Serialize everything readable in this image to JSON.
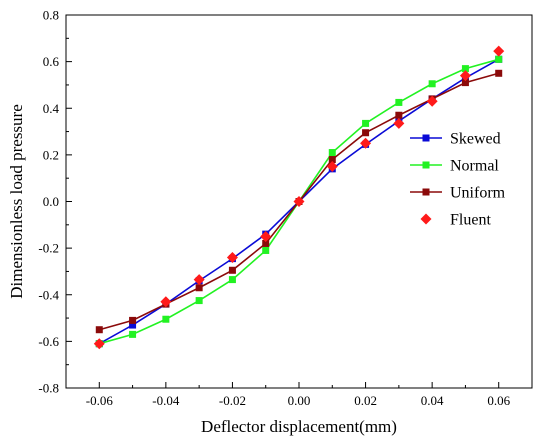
{
  "colors": {
    "skewed": "#0a0ad6",
    "normal": "#22f222",
    "uniform": "#8b0a0a",
    "fluent": "#ff1a1a"
  },
  "chart_data": {
    "type": "line",
    "xlabel": "Deflector displacement(mm)",
    "ylabel": "Dimensionless load pressure",
    "xlim": [
      -0.07,
      0.07
    ],
    "ylim": [
      -0.8,
      0.8
    ],
    "xticks": [
      "-0.06",
      "-0.04",
      "-0.02",
      "0.00",
      "0.02",
      "0.04",
      "0.06"
    ],
    "yticks": [
      "-0.8",
      "-0.6",
      "-0.4",
      "-0.2",
      "0.0",
      "0.2",
      "0.4",
      "0.6",
      "0.8"
    ],
    "legend_position": "right",
    "grid": false,
    "series": [
      {
        "name": "Skewed",
        "marker": "square",
        "color": "#0a0ad6",
        "x": [
          -0.06,
          -0.05,
          -0.04,
          -0.03,
          -0.02,
          -0.01,
          0.0,
          0.01,
          0.02,
          0.03,
          0.04,
          0.05,
          0.06
        ],
        "y": [
          -0.61,
          -0.53,
          -0.44,
          -0.34,
          -0.245,
          -0.14,
          0.0,
          0.14,
          0.245,
          0.345,
          0.44,
          0.53,
          0.61
        ]
      },
      {
        "name": "Normal",
        "marker": "square",
        "color": "#22f222",
        "x": [
          -0.06,
          -0.05,
          -0.04,
          -0.03,
          -0.02,
          -0.01,
          0.0,
          0.01,
          0.02,
          0.03,
          0.04,
          0.05,
          0.06
        ],
        "y": [
          -0.61,
          -0.57,
          -0.505,
          -0.425,
          -0.335,
          -0.21,
          0.0,
          0.21,
          0.335,
          0.425,
          0.505,
          0.57,
          0.61
        ]
      },
      {
        "name": "Uniform",
        "marker": "square",
        "color": "#8b0a0a",
        "x": [
          -0.06,
          -0.05,
          -0.04,
          -0.03,
          -0.02,
          -0.01,
          0.0,
          0.01,
          0.02,
          0.03,
          0.04,
          0.05,
          0.06
        ],
        "y": [
          -0.55,
          -0.51,
          -0.44,
          -0.37,
          -0.295,
          -0.18,
          0.0,
          0.18,
          0.295,
          0.37,
          0.44,
          0.51,
          0.55
        ]
      },
      {
        "name": "Fluent",
        "marker": "diamond",
        "color": "#ff1a1a",
        "line": false,
        "x": [
          -0.06,
          -0.04,
          -0.03,
          -0.02,
          -0.01,
          0.0,
          0.01,
          0.02,
          0.03,
          0.04,
          0.05,
          0.06
        ],
        "y": [
          -0.61,
          -0.43,
          -0.335,
          -0.24,
          -0.15,
          0.0,
          0.15,
          0.25,
          0.335,
          0.43,
          0.54,
          0.645
        ]
      }
    ]
  }
}
